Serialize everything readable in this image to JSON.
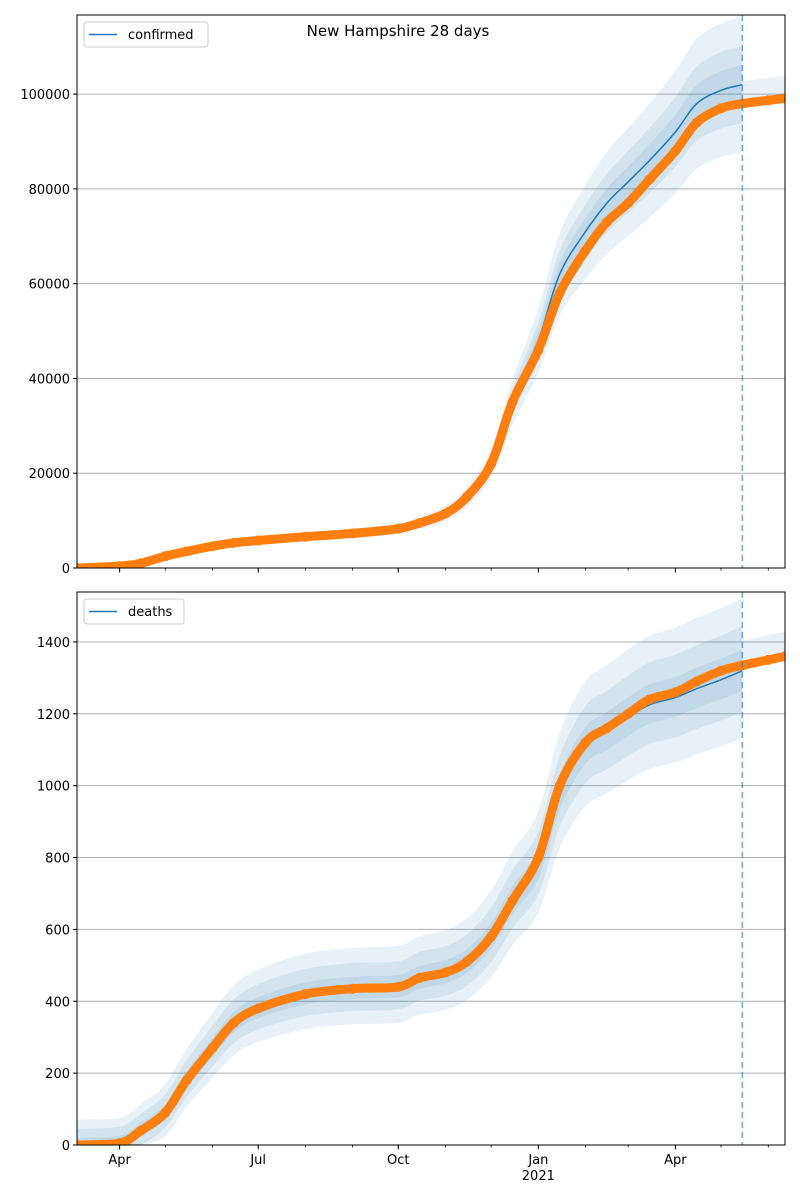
{
  "chart_data": {
    "type": "line",
    "title": "New Hampshire 28 days",
    "xlim": [
      "2020-03-04",
      "2021-06-12"
    ],
    "forecast_start": "2021-05-15",
    "x_ticks": [
      {
        "date": "2020-04-01",
        "label": "Apr",
        "sub": ""
      },
      {
        "date": "2020-07-01",
        "label": "Jul",
        "sub": ""
      },
      {
        "date": "2020-10-01",
        "label": "Oct",
        "sub": ""
      },
      {
        "date": "2021-01-01",
        "label": "Jan",
        "sub": "2021"
      },
      {
        "date": "2021-04-01",
        "label": "Apr",
        "sub": ""
      }
    ],
    "dates": [
      "2020-03-04",
      "2020-04-01",
      "2020-04-15",
      "2020-05-01",
      "2020-05-15",
      "2020-06-01",
      "2020-06-15",
      "2020-07-01",
      "2020-08-01",
      "2020-09-01",
      "2020-10-01",
      "2020-10-15",
      "2020-11-01",
      "2020-11-15",
      "2020-12-01",
      "2020-12-15",
      "2021-01-01",
      "2021-01-15",
      "2021-02-01",
      "2021-02-15",
      "2021-03-01",
      "2021-03-15",
      "2021-04-01",
      "2021-04-15",
      "2021-05-01",
      "2021-05-15",
      "2021-06-01",
      "2021-06-12"
    ],
    "colors": {
      "model": "#1f77b4",
      "observed": "#ff7f0e",
      "band": "#1f77b4",
      "grid": "#b0b0b0"
    },
    "panels": [
      {
        "legend": "confirmed",
        "legend_position": "upper-left",
        "ylim": [
          0,
          116700
        ],
        "yticks": [
          0,
          20000,
          40000,
          60000,
          80000,
          100000
        ],
        "grid": true,
        "observed": [
          0,
          400,
          1000,
          2500,
          3500,
          4600,
          5300,
          5800,
          6600,
          7300,
          8300,
          9500,
          11500,
          15000,
          22000,
          35000,
          46000,
          58000,
          67000,
          73000,
          77000,
          82000,
          88000,
          94000,
          97000,
          98000,
          98700,
          99100
        ],
        "model_median": [
          0,
          400,
          1000,
          2500,
          3500,
          4600,
          5300,
          5800,
          6600,
          7300,
          8300,
          9500,
          11500,
          15000,
          22000,
          35000,
          48000,
          62000,
          71000,
          77000,
          81500,
          86000,
          92000,
          98000,
          100800,
          102000
        ],
        "band_rel_width": [
          0.04,
          0.08,
          0.14
        ],
        "band_abs_width": [
          0,
          0,
          0
        ]
      },
      {
        "legend": "deaths",
        "legend_position": "upper-left",
        "ylim": [
          0,
          1539
        ],
        "yticks": [
          0,
          200,
          400,
          600,
          800,
          1000,
          1200,
          1400
        ],
        "grid": true,
        "observed": [
          0,
          5,
          40,
          90,
          180,
          270,
          340,
          380,
          420,
          435,
          440,
          465,
          480,
          510,
          580,
          680,
          800,
          1000,
          1120,
          1160,
          1200,
          1240,
          1260,
          1290,
          1320,
          1335,
          1350,
          1360
        ],
        "model_median": [
          0,
          5,
          40,
          90,
          180,
          270,
          340,
          380,
          420,
          435,
          440,
          465,
          480,
          510,
          580,
          680,
          780,
          980,
          1110,
          1150,
          1190,
          1225,
          1245,
          1270,
          1295,
          1320
        ],
        "band_rel_width": [
          0.03,
          0.06,
          0.1
        ],
        "band_abs_width": [
          20,
          45,
          70
        ]
      }
    ]
  }
}
